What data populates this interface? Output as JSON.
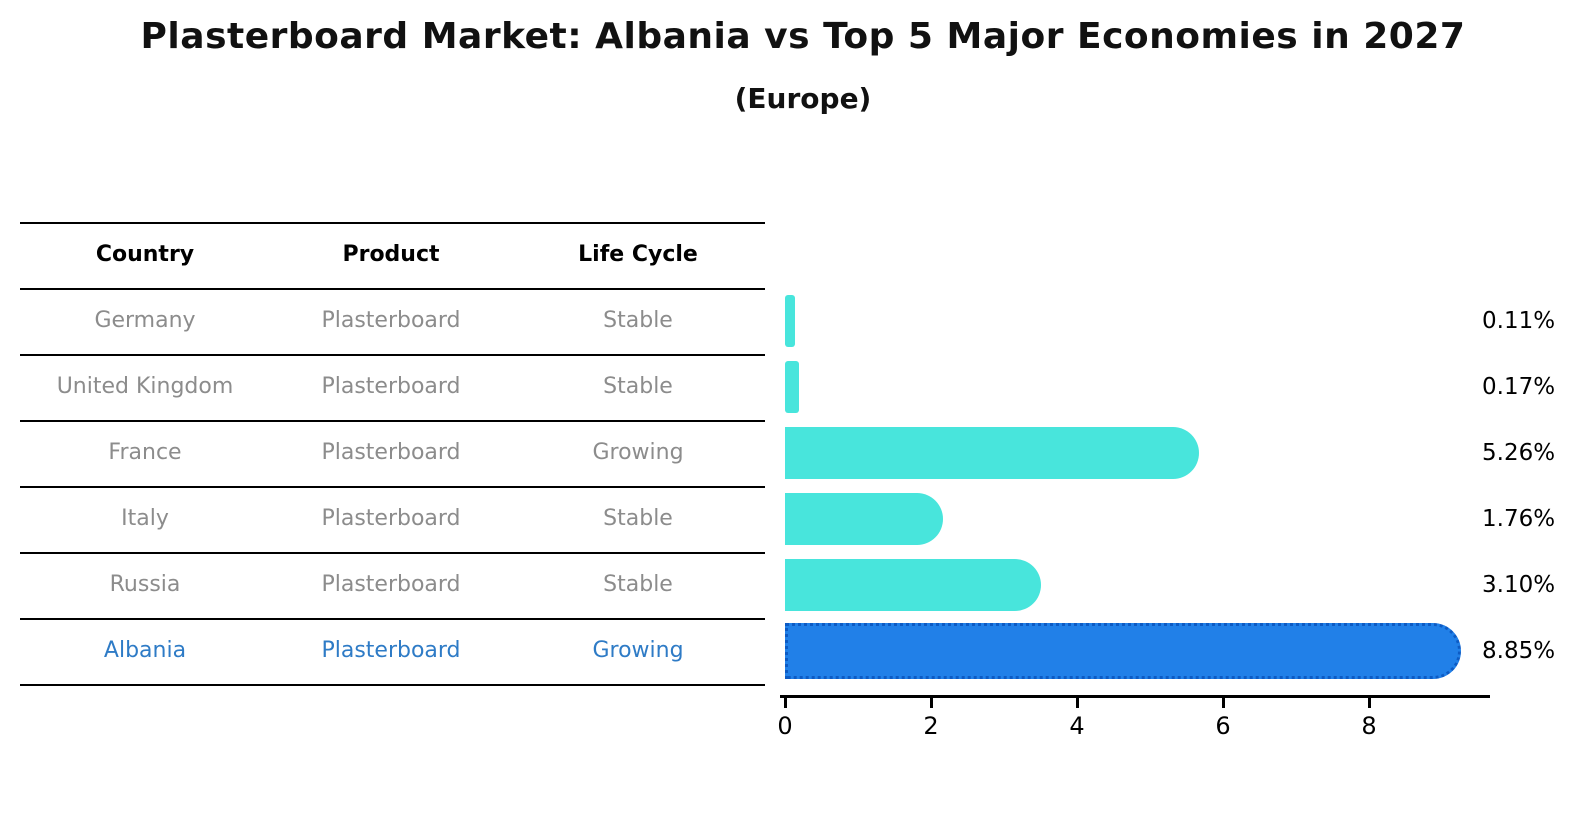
{
  "title": "Plasterboard Market: Albania vs Top 5 Major Economies in 2027",
  "subtitle": "(Europe)",
  "table": {
    "columns": [
      "Country",
      "Product",
      "Life Cycle"
    ],
    "rows": [
      {
        "country": "Germany",
        "product": "Plasterboard",
        "life_cycle": "Stable",
        "value_label": "0.11%"
      },
      {
        "country": "United Kingdom",
        "product": "Plasterboard",
        "life_cycle": "Stable",
        "value_label": "0.17%"
      },
      {
        "country": "France",
        "product": "Plasterboard",
        "life_cycle": "Growing",
        "value_label": "5.26%"
      },
      {
        "country": "Italy",
        "product": "Plasterboard",
        "life_cycle": "Stable",
        "value_label": "1.76%"
      },
      {
        "country": "Russia",
        "product": "Plasterboard",
        "life_cycle": "Stable",
        "value_label": "3.10%"
      },
      {
        "country": "Albania",
        "product": "Plasterboard",
        "life_cycle": "Growing",
        "value_label": "8.85%"
      }
    ]
  },
  "chart_data": {
    "type": "bar",
    "orientation": "horizontal",
    "title": "Plasterboard Market: Albania vs Top 5 Major Economies in 2027",
    "subtitle": "(Europe)",
    "categories": [
      "Germany",
      "United Kingdom",
      "France",
      "Italy",
      "Russia",
      "Albania"
    ],
    "values": [
      0.11,
      0.17,
      5.26,
      1.76,
      3.1,
      8.85
    ],
    "value_labels": [
      "0.11%",
      "0.17%",
      "5.26%",
      "1.76%",
      "3.10%",
      "8.85%"
    ],
    "x_ticks": [
      0,
      2,
      4,
      6,
      8
    ],
    "xlim": [
      0,
      9.4
    ],
    "grid": false,
    "legend": false,
    "highlight_index": 5,
    "colors": {
      "bar": "#48E5DC",
      "highlight_bar": "#2180E8",
      "highlight_bar_border": "#0D5BC4",
      "row_text": "#8C8C8C",
      "highlight_text": "#2E7BC6",
      "header_text": "#000000",
      "axis_text": "#000000",
      "line": "#000000"
    }
  }
}
